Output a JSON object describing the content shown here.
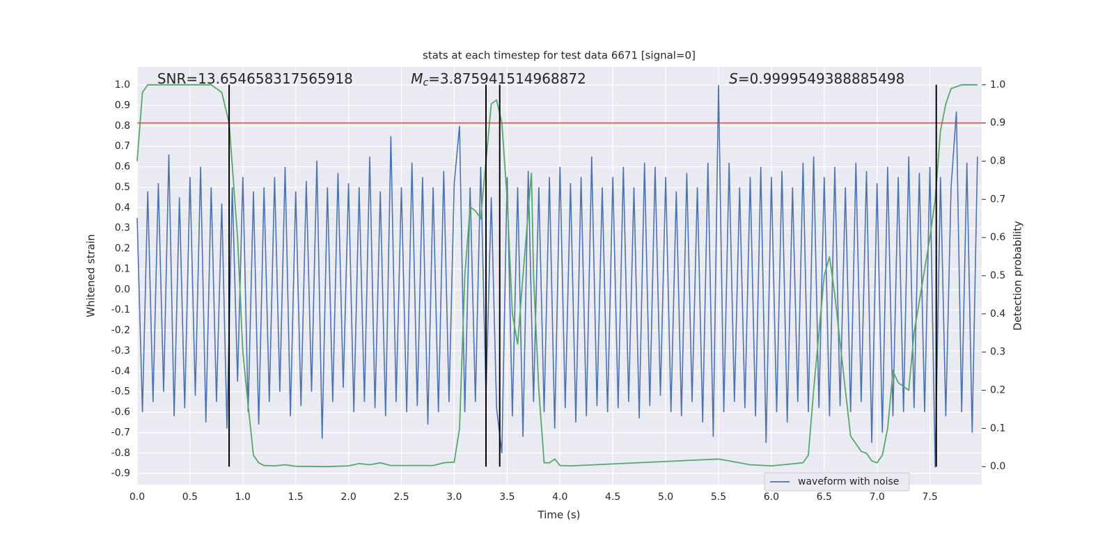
{
  "chart_data": {
    "type": "line",
    "title": "stats at each timestep for test data 6671 [signal=0]",
    "xlabel": "Time (s)",
    "ylabel": "Whitened strain",
    "y2label": "Detection probability",
    "xlim": [
      0,
      7.99
    ],
    "ylim": [
      -0.954,
      1.089
    ],
    "y2lim": [
      -0.047,
      1.047
    ],
    "xticks": [
      {
        "value": 0,
        "label": "0.0"
      },
      0.5,
      {
        "value": 1,
        "label": "1.0"
      },
      1.5,
      {
        "value": 2,
        "label": "2.0"
      },
      2.5,
      {
        "value": 3,
        "label": "3.0"
      },
      3.5,
      {
        "value": 4,
        "label": "4.0"
      },
      4.5,
      {
        "value": 5,
        "label": "5.0"
      },
      5.5,
      {
        "value": 6,
        "label": "6.0"
      },
      6.5,
      {
        "value": 7,
        "label": "7.0"
      },
      7.5
    ],
    "yticks": [
      -0.9,
      -0.8,
      -0.7,
      -0.6,
      -0.5,
      -0.4,
      -0.3,
      -0.2,
      -0.1,
      {
        "value": 0,
        "label": "0.0"
      },
      0.1,
      0.2,
      0.3,
      0.4,
      0.5,
      0.6,
      0.7,
      0.8,
      0.9,
      {
        "value": 1,
        "label": "1.0"
      }
    ],
    "y2ticks": [
      {
        "value": 0,
        "label": "0.0"
      },
      0.1,
      0.2,
      0.3,
      0.4,
      0.5,
      0.6,
      0.7,
      0.8,
      0.9,
      {
        "value": 1,
        "label": "1.0"
      }
    ],
    "grid": true,
    "legend": "lower right",
    "series": [
      {
        "name": "waveform with noise",
        "color": "#4c72b0",
        "x": [
          0,
          0.05,
          0.1,
          0.15,
          0.2,
          0.25,
          0.3,
          0.35,
          0.4,
          0.45,
          0.5,
          0.55,
          0.6,
          0.65,
          0.7,
          0.75,
          0.8,
          0.85,
          0.9,
          0.95,
          1,
          1.05,
          1.1,
          1.15,
          1.2,
          1.25,
          1.3,
          1.35,
          1.4,
          1.45,
          1.5,
          1.55,
          1.6,
          1.65,
          1.7,
          1.75,
          1.8,
          1.85,
          1.9,
          1.95,
          2,
          2.05,
          2.1,
          2.15,
          2.2,
          2.25,
          2.3,
          2.35,
          2.4,
          2.45,
          2.5,
          2.55,
          2.6,
          2.65,
          2.7,
          2.75,
          2.8,
          2.85,
          2.9,
          2.95,
          3,
          3.05,
          3.1,
          3.15,
          3.2,
          3.25,
          3.3,
          3.35,
          3.4,
          3.45,
          3.5,
          3.55,
          3.6,
          3.65,
          3.7,
          3.75,
          3.8,
          3.85,
          3.9,
          3.95,
          4,
          4.05,
          4.1,
          4.15,
          4.2,
          4.25,
          4.3,
          4.35,
          4.4,
          4.45,
          4.5,
          4.55,
          4.6,
          4.65,
          4.7,
          4.75,
          4.8,
          4.85,
          4.9,
          4.95,
          5,
          5.05,
          5.1,
          5.15,
          5.2,
          5.25,
          5.3,
          5.35,
          5.4,
          5.45,
          5.5,
          5.55,
          5.6,
          5.65,
          5.7,
          5.75,
          5.8,
          5.85,
          5.9,
          5.95,
          6,
          6.05,
          6.1,
          6.15,
          6.2,
          6.25,
          6.3,
          6.35,
          6.4,
          6.45,
          6.5,
          6.55,
          6.6,
          6.65,
          6.7,
          6.75,
          6.8,
          6.85,
          6.9,
          6.95,
          7,
          7.05,
          7.1,
          7.15,
          7.2,
          7.25,
          7.3,
          7.35,
          7.4,
          7.45,
          7.5,
          7.55,
          7.6,
          7.65,
          7.7,
          7.75,
          7.8,
          7.85,
          7.9,
          7.95
        ],
        "values": [
          0.35,
          -0.6,
          0.48,
          -0.55,
          0.52,
          -0.5,
          0.66,
          -0.62,
          0.45,
          -0.58,
          0.55,
          -0.52,
          0.6,
          -0.65,
          0.5,
          -0.55,
          0.42,
          -0.68,
          0.5,
          -0.45,
          0.55,
          -0.6,
          0.48,
          -0.66,
          0.5,
          -0.55,
          0.55,
          -0.5,
          0.6,
          -0.62,
          0.48,
          -0.57,
          0.53,
          -0.5,
          0.63,
          -0.73,
          0.5,
          -0.55,
          0.57,
          -0.48,
          0.52,
          -0.6,
          0.5,
          -0.55,
          0.65,
          -0.58,
          0.48,
          -0.62,
          0.75,
          -0.55,
          0.5,
          -0.6,
          0.62,
          -0.57,
          0.55,
          -0.66,
          0.5,
          -0.6,
          0.58,
          -0.55,
          0.52,
          0.8,
          -0.6,
          0.5,
          -0.55,
          0.6,
          -0.52,
          0.45,
          -0.58,
          -0.8,
          0.55,
          -0.62,
          0.5,
          -0.72,
          0.58,
          -0.55,
          0.5,
          -0.6,
          0.55,
          -0.68,
          0.6,
          -0.58,
          0.52,
          -0.65,
          0.55,
          -0.62,
          0.65,
          -0.57,
          0.5,
          -0.6,
          0.55,
          -0.58,
          0.6,
          -0.55,
          0.5,
          -0.63,
          0.62,
          -0.57,
          0.6,
          -0.52,
          0.55,
          -0.6,
          0.48,
          -0.62,
          0.57,
          -0.55,
          0.5,
          -0.65,
          0.62,
          -0.72,
          1.0,
          -0.6,
          0.62,
          -0.55,
          0.5,
          -0.58,
          0.55,
          -0.62,
          0.6,
          -0.75,
          0.55,
          -0.6,
          0.58,
          -0.65,
          0.5,
          -0.55,
          0.62,
          -0.6,
          0.65,
          -0.58,
          0.55,
          -0.62,
          0.6,
          -0.57,
          0.5,
          -0.6,
          0.62,
          -0.55,
          0.58,
          -0.75,
          0.52,
          -0.7,
          0.6,
          -0.62,
          0.55,
          -0.6,
          0.65,
          -0.58,
          0.57,
          -0.6,
          0.6,
          -0.87,
          0.55,
          -0.62,
          0.5,
          0.87,
          -0.6,
          0.62,
          -0.7,
          0.65
        ]
      },
      {
        "color": "#55a868",
        "axis": "y2",
        "x": [
          0,
          0.05,
          0.1,
          0.7,
          0.8,
          0.87,
          0.95,
          1,
          1.05,
          1.1,
          1.15,
          1.2,
          1.3,
          1.4,
          1.5,
          1.8,
          2,
          2.1,
          2.2,
          2.3,
          2.4,
          2.8,
          2.9,
          3,
          3.05,
          3.1,
          3.15,
          3.2,
          3.25,
          3.3,
          3.35,
          3.4,
          3.45,
          3.5,
          3.55,
          3.6,
          3.65,
          3.73,
          3.75,
          3.8,
          3.85,
          3.9,
          3.95,
          4,
          4.1,
          5.5,
          5.6,
          5.8,
          6,
          6.3,
          6.35,
          6.4,
          6.5,
          6.55,
          6.6,
          6.7,
          6.75,
          6.85,
          6.9,
          6.95,
          7,
          7.05,
          7.1,
          7.15,
          7.2,
          7.3,
          7.35,
          7.5,
          7.55,
          7.6,
          7.65,
          7.7,
          7.8,
          7.95
        ],
        "values": [
          0.8,
          0.98,
          1.0,
          1.0,
          0.98,
          0.9,
          0.6,
          0.3,
          0.16,
          0.03,
          0.01,
          0.003,
          0.002,
          0.005,
          0.001,
          0,
          0.002,
          0.008,
          0.005,
          0.01,
          0.003,
          0.003,
          0.01,
          0.012,
          0.1,
          0.5,
          0.68,
          0.67,
          0.65,
          0.8,
          0.95,
          0.96,
          0.9,
          0.7,
          0.4,
          0.32,
          0.5,
          0.77,
          0.5,
          0.2,
          0.01,
          0.01,
          0.02,
          0.003,
          0.002,
          0.02,
          0.015,
          0.005,
          0.002,
          0.01,
          0.03,
          0.2,
          0.5,
          0.55,
          0.45,
          0.2,
          0.08,
          0.04,
          0.035,
          0.015,
          0.01,
          0.03,
          0.1,
          0.25,
          0.22,
          0.2,
          0.35,
          0.6,
          0.7,
          0.88,
          0.95,
          0.99,
          1.0,
          1.0
        ]
      }
    ],
    "threshold": {
      "y2": 0.9,
      "color": "#c44e52"
    },
    "vlines": {
      "x": [
        0.87,
        3.3,
        3.43,
        7.56
      ],
      "y2": [
        0,
        1
      ],
      "color": "#000000"
    },
    "annotations": [
      {
        "text": "SNR=13.654658317565918",
        "x": 0.19
      },
      {
        "symbol": "M",
        "sub": "c",
        "text": "=3.875941514968872",
        "x": 2.59
      },
      {
        "symbol": "S",
        "text": "=0.9999549388885498",
        "x": 5.6
      }
    ]
  }
}
